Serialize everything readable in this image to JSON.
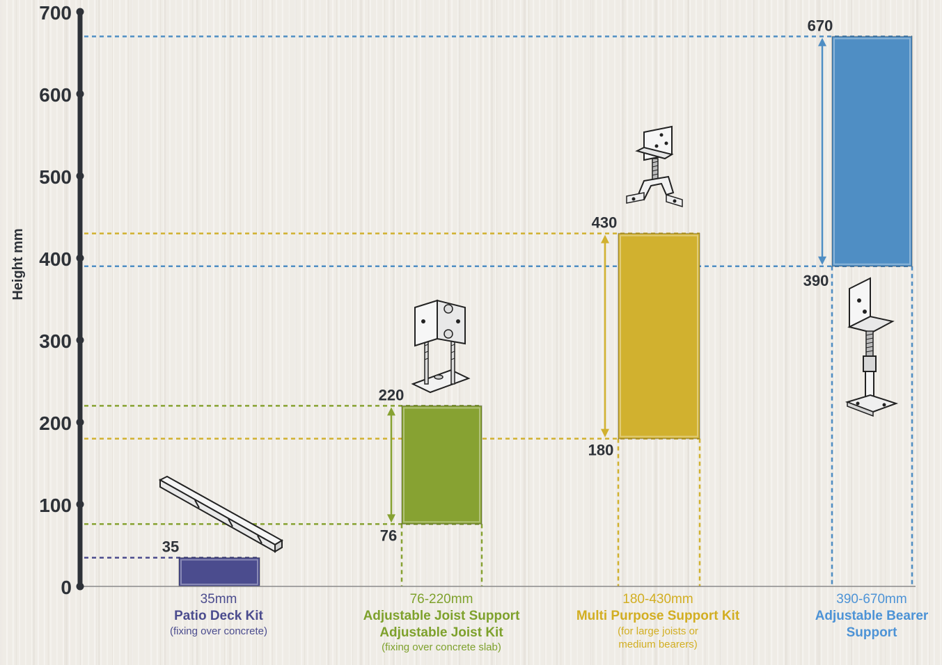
{
  "chart_data": {
    "type": "bar",
    "ylabel": "Height mm",
    "ylim": [
      0,
      700
    ],
    "yticks": [
      "0",
      "100",
      "200",
      "300",
      "400",
      "500",
      "600",
      "700"
    ],
    "grid": false,
    "legend": "none",
    "series": [
      {
        "range_label": "35mm",
        "names": [
          "Patio Deck Kit"
        ],
        "notes": [
          "(fixing over concrete)"
        ],
        "low": 0,
        "high": 35,
        "low_label": "",
        "high_label": "35",
        "color": "#4b4c8e",
        "text_color": "#4b4c8e"
      },
      {
        "range_label": "76-220mm",
        "names": [
          "Adjustable Joist Support",
          "Adjustable Joist Kit"
        ],
        "notes": [
          "(fixing over concrete slab)"
        ],
        "low": 76,
        "high": 220,
        "low_label": "76",
        "high_label": "220",
        "color": "#87a232",
        "text_color": "#7ea12c"
      },
      {
        "range_label": "180-430mm",
        "names": [
          "Multi Purpose Support Kit"
        ],
        "notes": [
          "(for large joists or",
          "medium bearers)"
        ],
        "low": 180,
        "high": 430,
        "low_label": "180",
        "high_label": "430",
        "color": "#d1b12f",
        "text_color": "#d2ae22"
      },
      {
        "range_label": "390-670mm",
        "names": [
          "Adjustable Bearer",
          "Support"
        ],
        "notes": [],
        "low": 390,
        "high": 670,
        "low_label": "390",
        "high_label": "670",
        "color": "#4f8ec4",
        "text_color": "#4d93d6"
      }
    ]
  },
  "colors": {
    "axis": "#2e3238"
  },
  "icons": [
    "patio-deck-rail-icon",
    "joist-bracket-icon",
    "multi-purpose-pedestal-icon",
    "bearer-post-icon"
  ]
}
